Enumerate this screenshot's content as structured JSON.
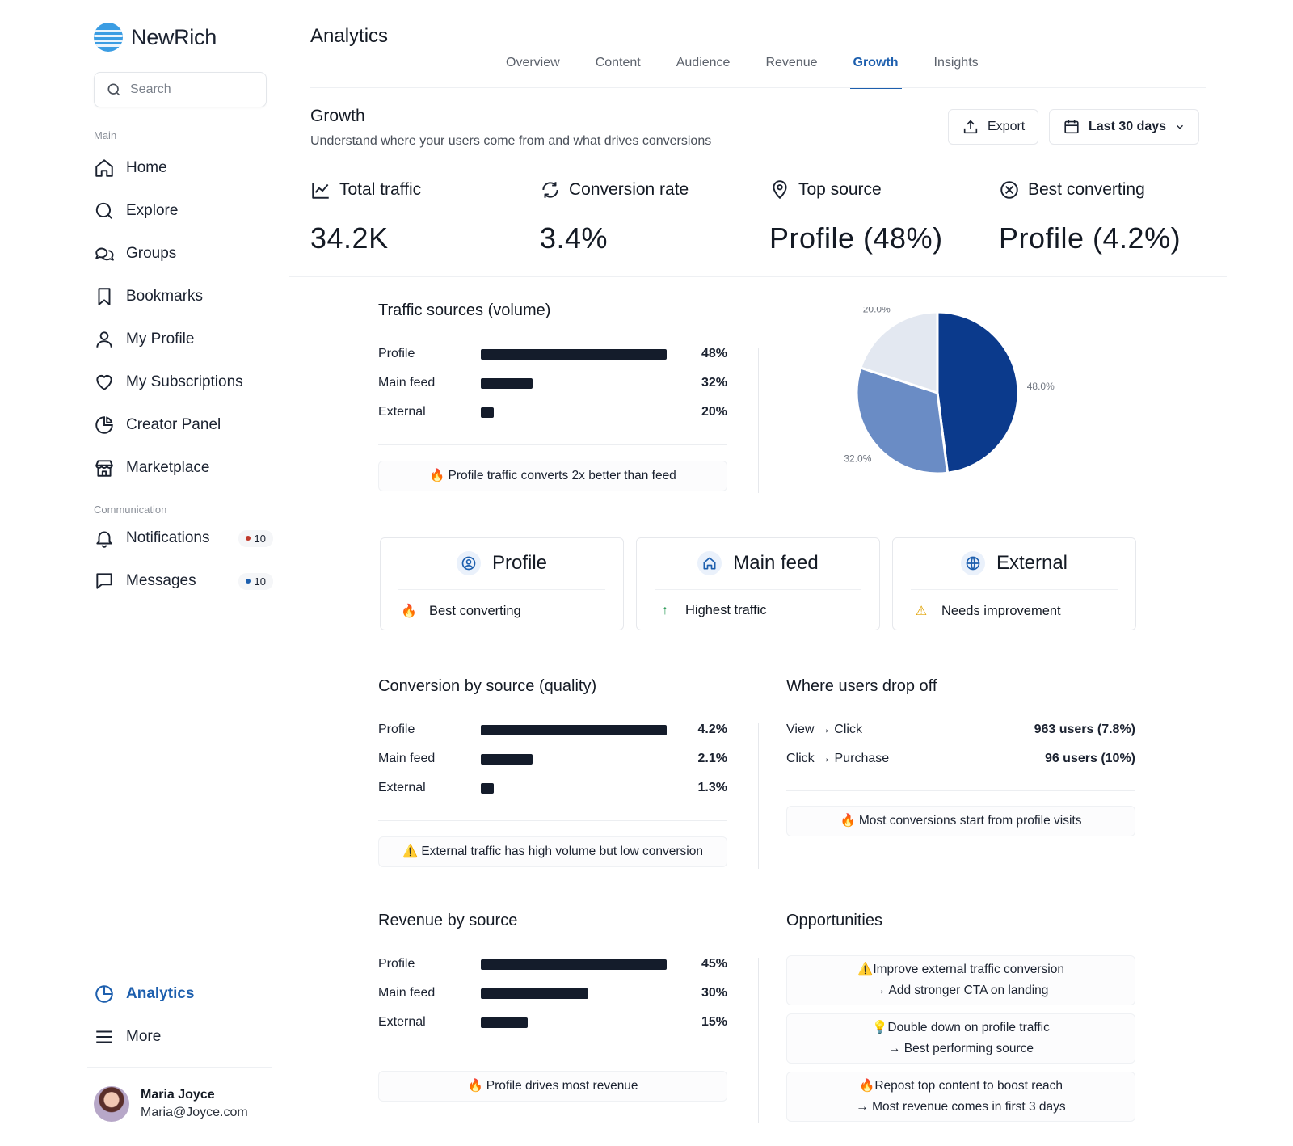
{
  "app": {
    "name": "NewRich"
  },
  "search": {
    "placeholder": "Search"
  },
  "sidebar": {
    "main_label": "Main",
    "main_items": [
      {
        "label": "Home",
        "icon": "home-icon"
      },
      {
        "label": "Explore",
        "icon": "search-icon"
      },
      {
        "label": "Groups",
        "icon": "chat-bubbles-icon"
      },
      {
        "label": "Bookmarks",
        "icon": "bookmark-icon"
      },
      {
        "label": "My Profile",
        "icon": "user-icon"
      },
      {
        "label": "My Subscriptions",
        "icon": "heart-icon"
      },
      {
        "label": "Creator Panel",
        "icon": "pie-chart-icon"
      },
      {
        "label": "Marketplace",
        "icon": "store-icon"
      }
    ],
    "comm_label": "Communication",
    "comm_items": [
      {
        "label": "Notifications",
        "icon": "bell-icon",
        "badge": "10",
        "badge_color": "#c0392b"
      },
      {
        "label": "Messages",
        "icon": "message-icon",
        "badge": "10",
        "badge_color": "#1d5fae"
      }
    ],
    "analytics_label": "Analytics",
    "more_label": "More"
  },
  "user": {
    "name": "Maria Joyce",
    "email": "Maria@Joyce.com"
  },
  "header": {
    "title": "Analytics",
    "tabs": [
      "Overview",
      "Content",
      "Audience",
      "Revenue",
      "Growth",
      "Insights"
    ],
    "active_tab": "Growth"
  },
  "growth": {
    "title": "Growth",
    "subtitle": "Understand where your users come from and what drives conversions",
    "export_label": "Export",
    "range_label": "Last 30 days"
  },
  "kpis": [
    {
      "title": "Total traffic",
      "value": "34.2K",
      "icon": "line-chart-icon"
    },
    {
      "title": "Conversion rate",
      "value": "3.4%",
      "icon": "refresh-icon"
    },
    {
      "title": "Top source",
      "value": "Profile (48%)",
      "icon": "map-pin-icon"
    },
    {
      "title": "Best converting",
      "value": "Profile (4.2%)",
      "icon": "target-icon"
    }
  ],
  "traffic": {
    "title": "Traffic sources (volume)",
    "rows": [
      {
        "name": "Profile",
        "value": "48%",
        "fraction": 1.0
      },
      {
        "name": "Main feed",
        "value": "32%",
        "fraction": 0.28
      },
      {
        "name": "External",
        "value": "20%",
        "fraction": 0.07
      }
    ],
    "note": "Profile traffic converts 2x better than feed",
    "note_icon": "🔥"
  },
  "chart_data": {
    "type": "pie",
    "categories": [
      "Profile",
      "Main feed",
      "External"
    ],
    "values": [
      48.0,
      32.0,
      20.0
    ],
    "value_labels": [
      "48.0%",
      "32.0%",
      "20.0%"
    ],
    "colors": [
      "#0b3a8c",
      "#6a8cc5",
      "#e3e8f1"
    ]
  },
  "source_cards": [
    {
      "title": "Profile",
      "icon": "user-circle-icon",
      "footer": "Best converting",
      "footer_icon": "🔥"
    },
    {
      "title": "Main feed",
      "icon": "home-icon",
      "footer": "Highest traffic",
      "footer_icon": "↑"
    },
    {
      "title": "External",
      "icon": "globe-icon",
      "footer": "Needs improvement",
      "footer_icon": "⚠"
    }
  ],
  "conversion": {
    "title": "Conversion by source (quality)",
    "rows": [
      {
        "name": "Profile",
        "value": "4.2%",
        "fraction": 1.0
      },
      {
        "name": "Main feed",
        "value": "2.1%",
        "fraction": 0.28
      },
      {
        "name": "External",
        "value": "1.3%",
        "fraction": 0.07
      }
    ],
    "note": "External traffic has high volume but low conversion",
    "note_icon": "⚠️"
  },
  "dropoff": {
    "title": "Where users drop off",
    "rows": [
      {
        "name": "View → Click",
        "value": "963 users (7.8%)"
      },
      {
        "name": "Click → Purchase",
        "value": "96 users (10%)"
      }
    ],
    "note": "Most conversions start from profile visits",
    "note_icon": "🔥"
  },
  "revenue": {
    "title": "Revenue by source",
    "rows": [
      {
        "name": "Profile",
        "value": "45%",
        "fraction": 1.0
      },
      {
        "name": "Main feed",
        "value": "30%",
        "fraction": 0.58
      },
      {
        "name": "External",
        "value": "15%",
        "fraction": 0.25
      }
    ],
    "note": "Profile drives most revenue",
    "note_icon": "🔥"
  },
  "opportunities": {
    "title": "Opportunities",
    "items": [
      {
        "icon": "⚠️",
        "line1": "Improve external traffic conversion",
        "line2": "→ Add stronger CTA on landing"
      },
      {
        "icon": "💡",
        "line1": "Double down on profile traffic",
        "line2": "→ Best performing source"
      },
      {
        "icon": "🔥",
        "line1": "Repost top content to boost reach",
        "line2": "→ Most revenue comes in first 3 days"
      }
    ]
  }
}
